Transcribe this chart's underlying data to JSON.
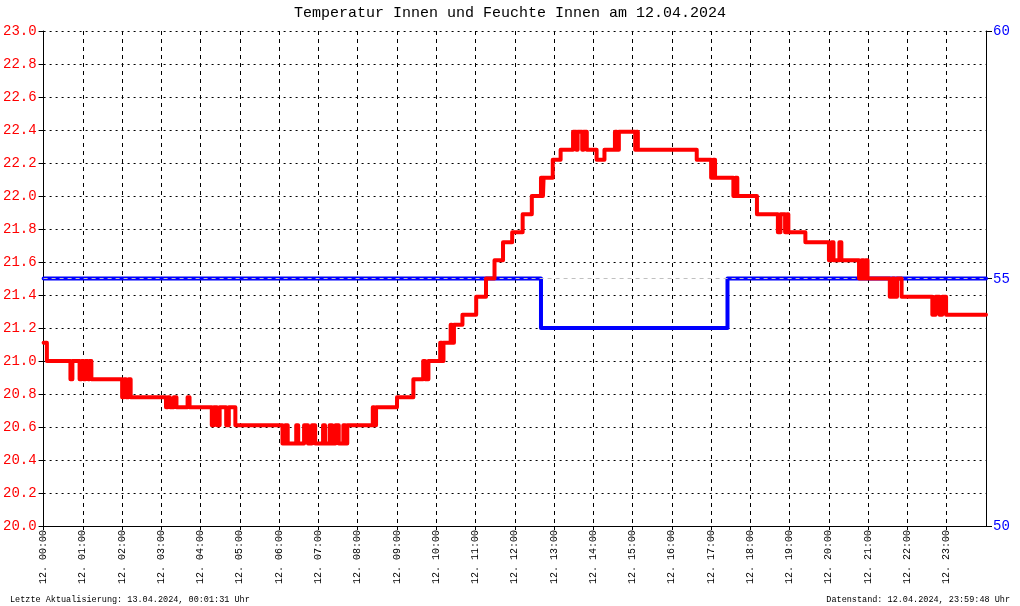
{
  "chart_data": {
    "type": "step",
    "title": "Temperatur Innen und Feuchte Innen am 12.04.2024",
    "annotations": [
      "Letzte Aktualisierung: 13.04.2024, 00:01:31 Uhr",
      "Datenstand: 12.04.2024, 23:59:48 Uhr"
    ],
    "xlim": [
      "2024-04-12T00:00",
      "2024-04-13T00:00"
    ],
    "xticks": [
      {
        "value": "2024-04-12T00:00",
        "label": "12. 00:00"
      },
      {
        "value": "2024-04-12T01:00",
        "label": "12. 01:00"
      },
      {
        "value": "2024-04-12T02:00",
        "label": "12. 02:00"
      },
      {
        "value": "2024-04-12T03:00",
        "label": "12. 03:00"
      },
      {
        "value": "2024-04-12T04:00",
        "label": "12. 04:00"
      },
      {
        "value": "2024-04-12T05:00",
        "label": "12. 05:00"
      },
      {
        "value": "2024-04-12T06:00",
        "label": "12. 06:00"
      },
      {
        "value": "2024-04-12T07:00",
        "label": "12. 07:00"
      },
      {
        "value": "2024-04-12T08:00",
        "label": "12. 08:00"
      },
      {
        "value": "2024-04-12T09:00",
        "label": "12. 09:00"
      },
      {
        "value": "2024-04-12T10:00",
        "label": "12. 10:00"
      },
      {
        "value": "2024-04-12T11:00",
        "label": "12. 11:00"
      },
      {
        "value": "2024-04-12T12:00",
        "label": "12. 12:00"
      },
      {
        "value": "2024-04-12T13:00",
        "label": "12. 13:00"
      },
      {
        "value": "2024-04-12T14:00",
        "label": "12. 14:00"
      },
      {
        "value": "2024-04-12T15:00",
        "label": "12. 15:00"
      },
      {
        "value": "2024-04-12T16:00",
        "label": "12. 16:00"
      },
      {
        "value": "2024-04-12T17:00",
        "label": "12. 17:00"
      },
      {
        "value": "2024-04-12T18:00",
        "label": "12. 18:00"
      },
      {
        "value": "2024-04-12T19:00",
        "label": "12. 19:00"
      },
      {
        "value": "2024-04-12T20:00",
        "label": "12. 20:00"
      },
      {
        "value": "2024-04-12T21:00",
        "label": "12. 21:00"
      },
      {
        "value": "2024-04-12T22:00",
        "label": "12. 22:00"
      },
      {
        "value": "2024-04-12T23:00",
        "label": "12. 23:00"
      }
    ],
    "ylim": [
      20,
      23
    ],
    "yticks": [
      {
        "value": 20,
        "label": "20.0"
      },
      20.2,
      20.4,
      20.6,
      20.8,
      {
        "value": 21,
        "label": "21.0"
      },
      21.2,
      21.4,
      21.6,
      21.8,
      {
        "value": 22,
        "label": "22.0"
      },
      22.2,
      22.4,
      22.6,
      22.8,
      {
        "value": 23,
        "label": "23.0"
      }
    ],
    "y2lim": [
      50,
      60
    ],
    "y2ticks": [
      50,
      55,
      60
    ],
    "grid": true,
    "line_style": "solid",
    "marker": "none",
    "ref_lines": [
      {
        "axis": "y2",
        "value": 55,
        "color": "#c0c0c0",
        "line_style": "dashed"
      }
    ],
    "series": [
      {
        "color": "#ff0000",
        "x": [
          "2024-04-12T00:00",
          "2024-04-12T00:05",
          "2024-04-12T00:41",
          "2024-04-12T00:44",
          "2024-04-12T00:55",
          "2024-04-12T00:58",
          "2024-04-12T01:01",
          "2024-04-12T01:04",
          "2024-04-12T01:08",
          "2024-04-12T01:10",
          "2024-04-12T01:13",
          "2024-04-12T02:00",
          "2024-04-12T02:03",
          "2024-04-12T02:06",
          "2024-04-12T02:10",
          "2024-04-12T02:13",
          "2024-04-12T03:07",
          "2024-04-12T03:10",
          "2024-04-12T03:13",
          "2024-04-12T03:19",
          "2024-04-12T03:23",
          "2024-04-12T03:40",
          "2024-04-12T03:43",
          "2024-04-12T04:17",
          "2024-04-12T04:20",
          "2024-04-12T04:25",
          "2024-04-12T04:29",
          "2024-04-12T04:39",
          "2024-04-12T04:43",
          "2024-04-12T04:53",
          "2024-04-12T06:05",
          "2024-04-12T06:09",
          "2024-04-12T06:13",
          "2024-04-12T06:26",
          "2024-04-12T06:29",
          "2024-04-12T06:38",
          "2024-04-12T06:44",
          "2024-04-12T06:50",
          "2024-04-12T06:55",
          "2024-04-12T07:07",
          "2024-04-12T07:10",
          "2024-04-12T07:17",
          "2024-04-12T07:21",
          "2024-04-12T07:26",
          "2024-04-12T07:31",
          "2024-04-12T07:38",
          "2024-04-12T07:41",
          "2024-04-12T07:44",
          "2024-04-12T08:23",
          "2024-04-12T08:25",
          "2024-04-12T08:28",
          "2024-04-12T09:00",
          "2024-04-12T09:25",
          "2024-04-12T09:40",
          "2024-04-12T09:43",
          "2024-04-12T09:48",
          "2024-04-12T10:06",
          "2024-04-12T10:09",
          "2024-04-12T10:11",
          "2024-04-12T10:22",
          "2024-04-12T10:24",
          "2024-04-12T10:27",
          "2024-04-12T10:40",
          "2024-04-12T11:01",
          "2024-04-12T11:16",
          "2024-04-12T11:29",
          "2024-04-12T11:42",
          "2024-04-12T11:56",
          "2024-04-12T12:12",
          "2024-04-12T12:26",
          "2024-04-12T12:40",
          "2024-04-12T12:43",
          "2024-04-12T12:44",
          "2024-04-12T12:58",
          "2024-04-12T13:10",
          "2024-04-12T13:29",
          "2024-04-12T13:34",
          "2024-04-12T13:36",
          "2024-04-12T13:43",
          "2024-04-12T13:45",
          "2024-04-12T13:50",
          "2024-04-12T14:05",
          "2024-04-12T14:17",
          "2024-04-12T14:33",
          "2024-04-12T14:36",
          "2024-04-12T14:39",
          "2024-04-12T15:04",
          "2024-04-12T15:06",
          "2024-04-12T15:08",
          "2024-04-12T16:38",
          "2024-04-12T17:00",
          "2024-04-12T17:03",
          "2024-04-12T17:06",
          "2024-04-12T17:34",
          "2024-04-12T17:37",
          "2024-04-12T17:40",
          "2024-04-12T18:10",
          "2024-04-12T18:42",
          "2024-04-12T18:46",
          "2024-04-12T18:53",
          "2024-04-12T18:56",
          "2024-04-12T18:58",
          "2024-04-12T19:24",
          "2024-04-12T20:00",
          "2024-04-12T20:04",
          "2024-04-12T20:07",
          "2024-04-12T20:16",
          "2024-04-12T20:19",
          "2024-04-12T20:46",
          "2024-04-12T20:50",
          "2024-04-12T20:53",
          "2024-04-12T20:56",
          "2024-04-12T20:59",
          "2024-04-12T21:33",
          "2024-04-12T21:37",
          "2024-04-12T21:40",
          "2024-04-12T21:44",
          "2024-04-12T21:51",
          "2024-04-12T22:38",
          "2024-04-12T22:43",
          "2024-04-12T22:49",
          "2024-04-12T22:53",
          "2024-04-12T22:59",
          "2024-04-13T00:00"
        ],
        "values": [
          21.11,
          21.0,
          20.89,
          21.0,
          20.89,
          21.0,
          20.89,
          21.0,
          20.89,
          21.0,
          20.89,
          20.78,
          20.89,
          20.78,
          20.89,
          20.78,
          20.72,
          20.78,
          20.72,
          20.78,
          20.72,
          20.78,
          20.72,
          20.61,
          20.72,
          20.61,
          20.72,
          20.61,
          20.72,
          20.61,
          20.5,
          20.61,
          20.5,
          20.61,
          20.5,
          20.61,
          20.5,
          20.61,
          20.5,
          20.61,
          20.5,
          20.61,
          20.5,
          20.61,
          20.5,
          20.61,
          20.5,
          20.61,
          20.72,
          20.61,
          20.72,
          20.78,
          20.89,
          21.0,
          20.89,
          21.0,
          21.11,
          21.0,
          21.11,
          21.22,
          21.11,
          21.22,
          21.28,
          21.39,
          21.5,
          21.61,
          21.72,
          21.78,
          21.89,
          22.0,
          22.11,
          22.0,
          22.11,
          22.22,
          22.28,
          22.39,
          22.28,
          22.39,
          22.28,
          22.39,
          22.28,
          22.22,
          22.28,
          22.39,
          22.28,
          22.39,
          22.28,
          22.39,
          22.28,
          22.22,
          22.11,
          22.22,
          22.11,
          22.0,
          22.11,
          22.0,
          21.89,
          21.78,
          21.89,
          21.78,
          21.89,
          21.78,
          21.72,
          21.61,
          21.72,
          21.61,
          21.72,
          21.61,
          21.5,
          21.61,
          21.5,
          21.61,
          21.5,
          21.39,
          21.5,
          21.39,
          21.5,
          21.39,
          21.28,
          21.39,
          21.28,
          21.39,
          21.28,
          21.28
        ]
      },
      {
        "color": "#0000ff",
        "axis": "y2",
        "x": [
          "2024-04-12T00:00",
          "2024-04-12T12:40",
          "2024-04-12T17:25",
          "2024-04-13T00:00"
        ],
        "values": [
          55,
          54,
          55,
          55
        ]
      }
    ]
  }
}
